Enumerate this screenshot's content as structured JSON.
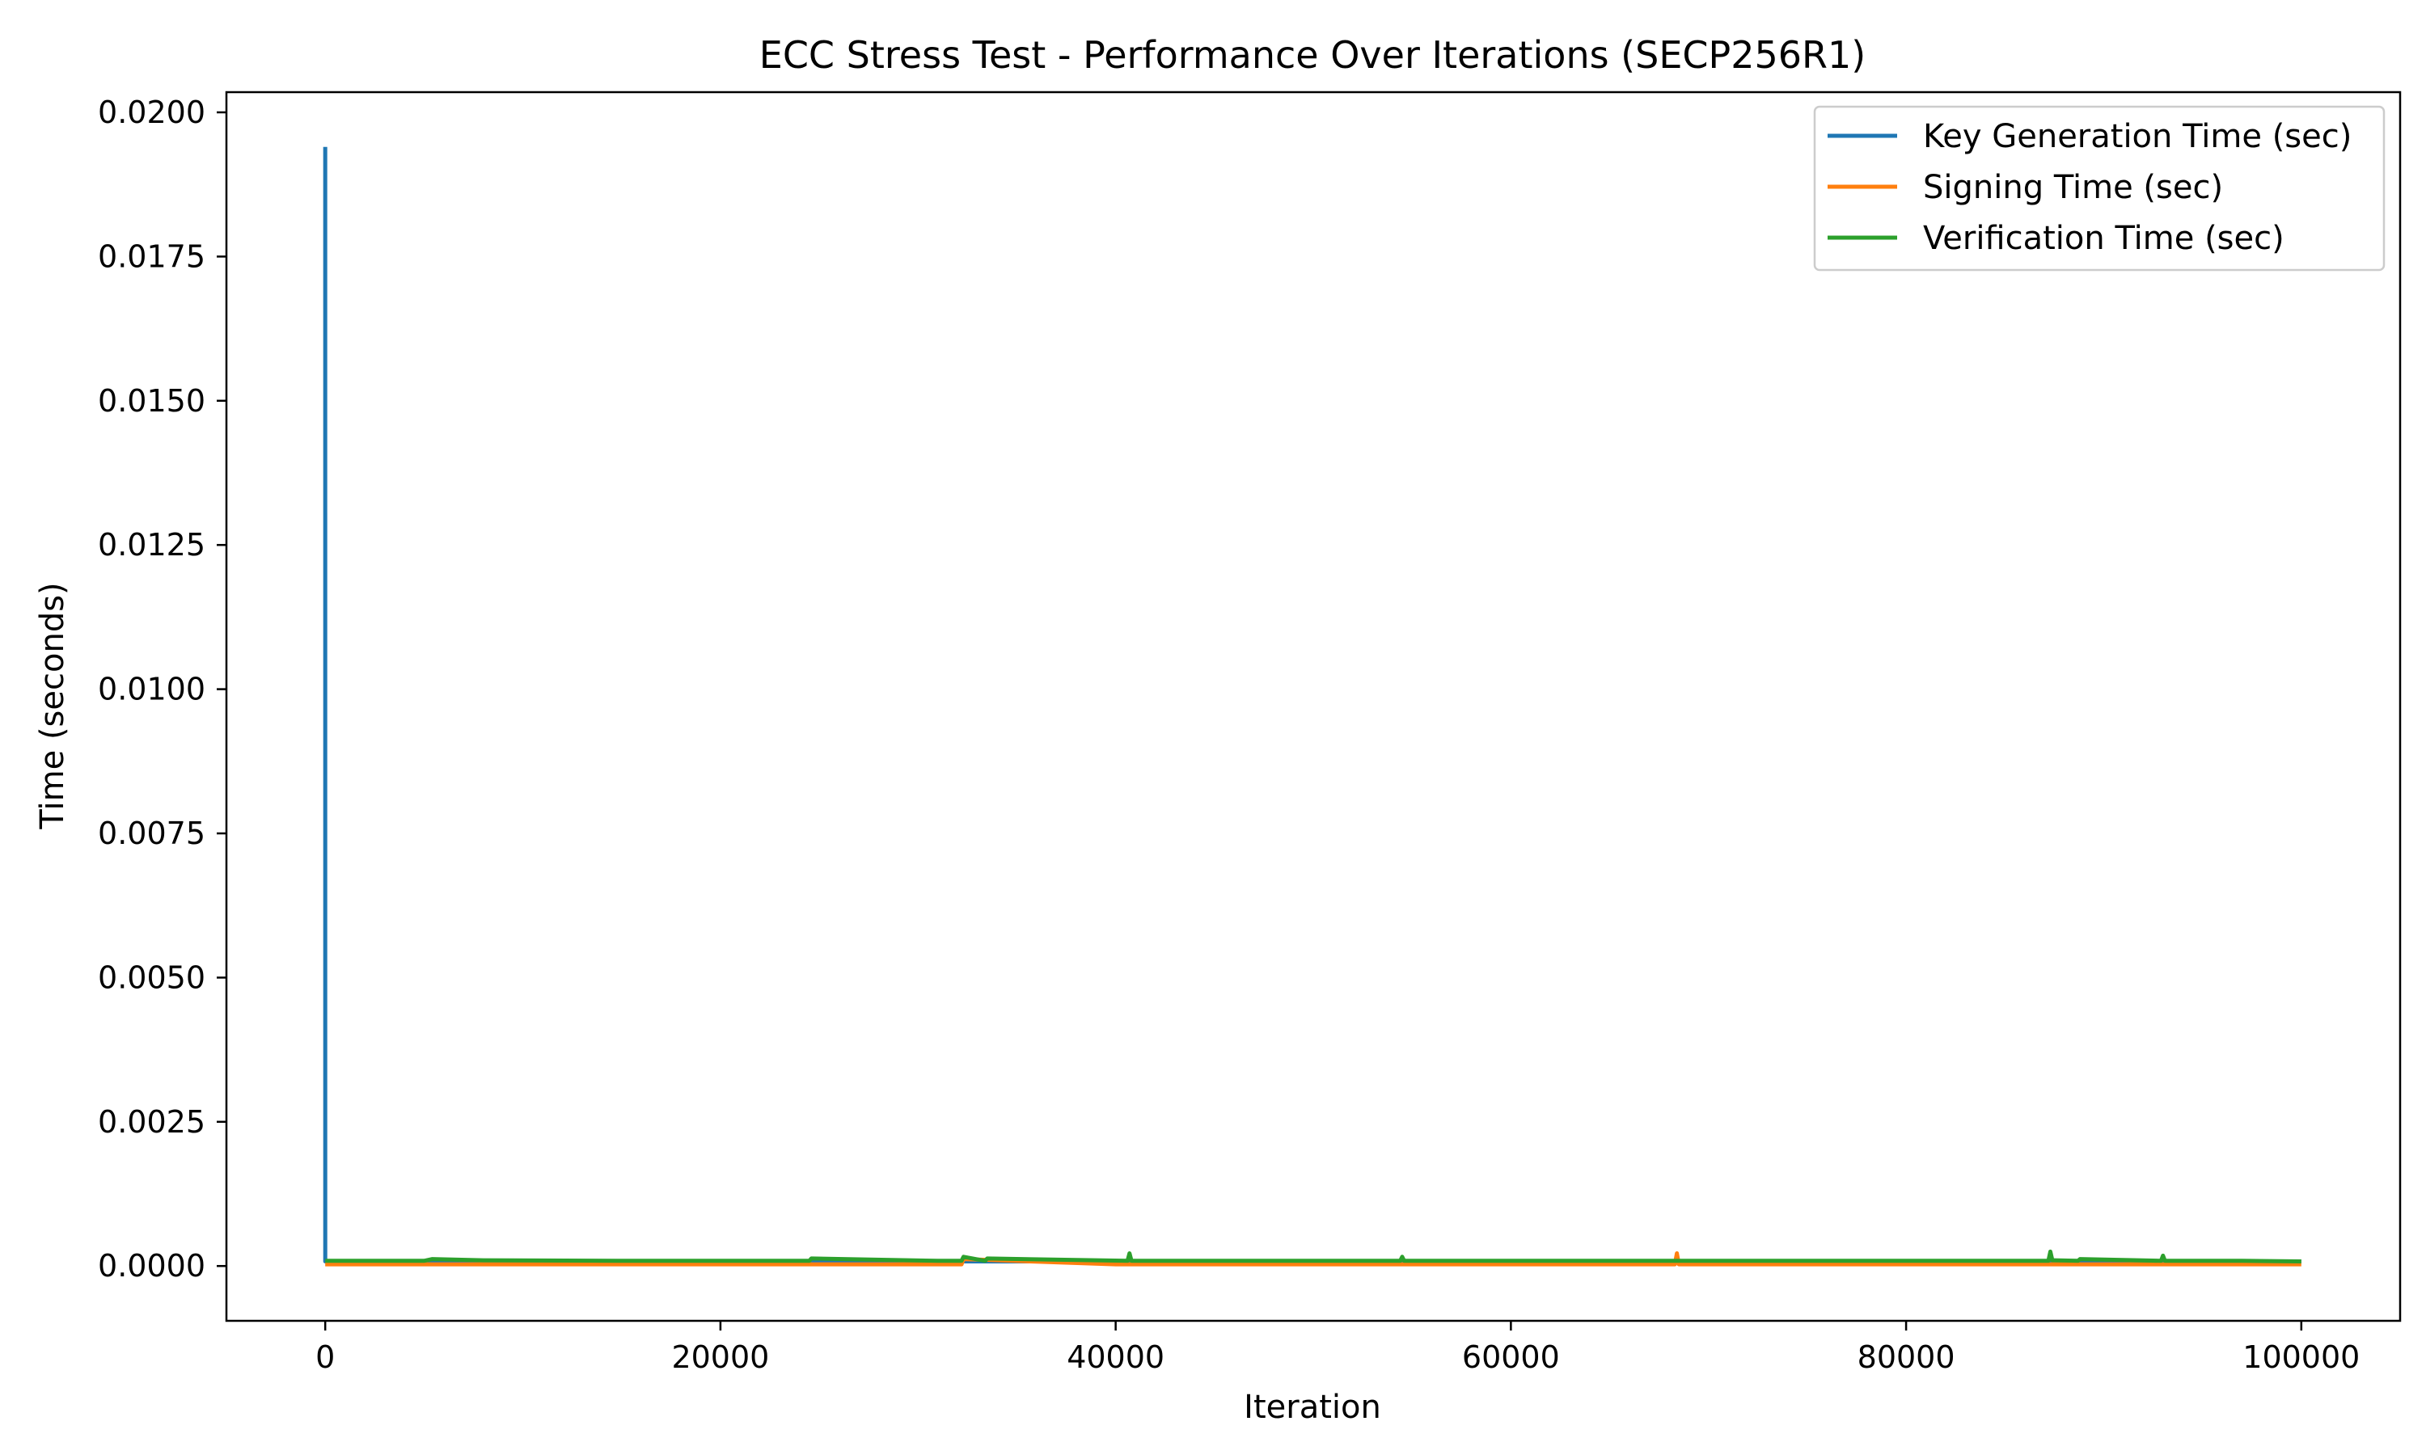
{
  "chart_data": {
    "type": "line",
    "title": "ECC Stress Test - Performance Over Iterations (SECP256R1)",
    "xlabel": "Iteration",
    "ylabel": "Time (seconds)",
    "xlim": [
      -5000,
      105000
    ],
    "ylim": [
      -0.00095,
      0.02035
    ],
    "xticks": [
      0,
      20000,
      40000,
      60000,
      80000,
      100000
    ],
    "xtick_labels": [
      "0",
      "20000",
      "40000",
      "60000",
      "80000",
      "100000"
    ],
    "yticks": [
      0.0,
      0.0025,
      0.005,
      0.0075,
      0.01,
      0.0125,
      0.015,
      0.0175,
      0.02
    ],
    "ytick_labels": [
      "0.0000",
      "0.0025",
      "0.0050",
      "0.0075",
      "0.0100",
      "0.0125",
      "0.0150",
      "0.0175",
      "0.0200"
    ],
    "grid": false,
    "legend_position": "top-right",
    "series": [
      {
        "name": "Key Generation Time (sec)",
        "color": "#1f77b4",
        "x": [
          0,
          1,
          2,
          10000,
          20000,
          30000,
          40000,
          50000,
          60000,
          70000,
          80000,
          90000,
          100000
        ],
        "y": [
          0.0194,
          9e-05,
          8e-05,
          8e-05,
          8e-05,
          8e-05,
          8e-05,
          8e-05,
          8e-05,
          8e-05,
          8e-05,
          8e-05,
          8e-05
        ]
      },
      {
        "name": "Signing Time (sec)",
        "color": "#ff7f0e",
        "x": [
          0,
          10000,
          20000,
          30000,
          32200,
          32300,
          40000,
          50000,
          60000,
          68300,
          68400,
          68500,
          80000,
          90000,
          100000
        ],
        "y": [
          3e-05,
          3e-05,
          3e-05,
          3e-05,
          3e-05,
          0.00012,
          3e-05,
          3e-05,
          3e-05,
          3e-05,
          0.00022,
          3e-05,
          3e-05,
          3e-05,
          3e-05
        ]
      },
      {
        "name": "Verification Time (sec)",
        "color": "#2ca02c",
        "x": [
          0,
          5000,
          5400,
          8000,
          15000,
          24500,
          24600,
          31000,
          32200,
          32300,
          33400,
          33500,
          40600,
          40700,
          40800,
          50000,
          54400,
          54500,
          54600,
          62000,
          70000,
          78000,
          87200,
          87300,
          87400,
          88700,
          88800,
          92900,
          93000,
          93100,
          97000,
          100000
        ],
        "y": [
          9e-05,
          9e-05,
          0.00012,
          0.0001,
          9e-05,
          9e-05,
          0.00013,
          9e-05,
          9e-05,
          0.00016,
          9e-05,
          0.00013,
          9e-05,
          0.00022,
          9e-05,
          9e-05,
          9e-05,
          0.00016,
          9e-05,
          9e-05,
          9e-05,
          9e-05,
          9e-05,
          0.00025,
          0.0001,
          9e-05,
          0.00012,
          9e-05,
          0.00018,
          9e-05,
          9e-05,
          8e-05
        ]
      }
    ]
  }
}
